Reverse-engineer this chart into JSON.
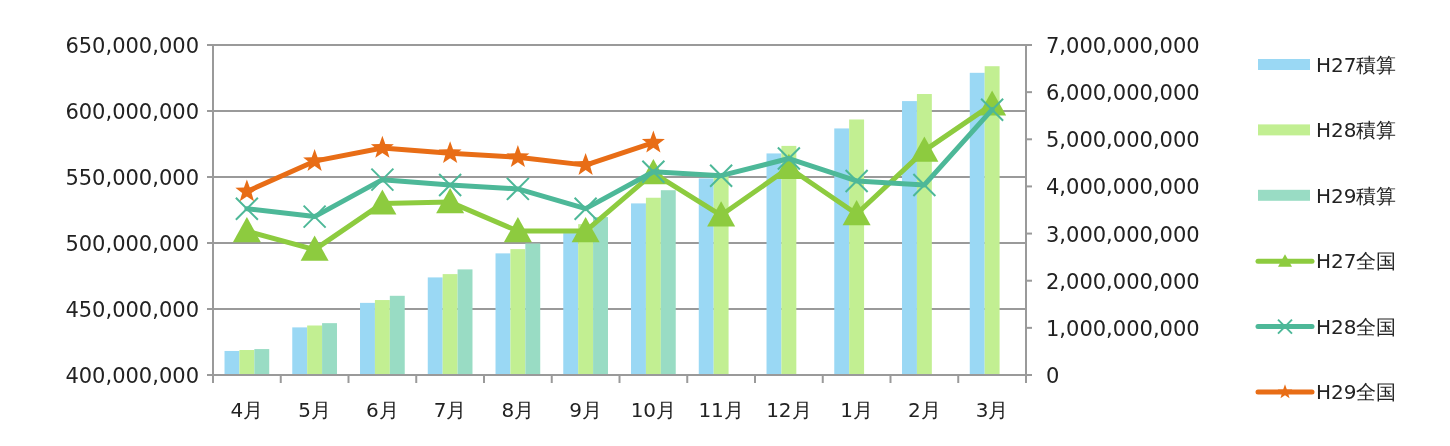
{
  "chart_data": {
    "type": "bar",
    "categories": [
      "4月",
      "5月",
      "6月",
      "7月",
      "8月",
      "9月",
      "10月",
      "11月",
      "12月",
      "1月",
      "2月",
      "3月"
    ],
    "series": [
      {
        "name": "H27積算",
        "axis": "y2",
        "color": "#9ad8f4",
        "values": [
          510000000,
          1010000000,
          1530000000,
          2070000000,
          2580000000,
          3010000000,
          3640000000,
          4170000000,
          4700000000,
          5230000000,
          5810000000,
          6410000000
        ]
      },
      {
        "name": "H28積算",
        "axis": "y2",
        "color": "#c2ef92",
        "values": [
          530000000,
          1050000000,
          1590000000,
          2140000000,
          2670000000,
          3200000000,
          3760000000,
          4240000000,
          4860000000,
          5420000000,
          5960000000,
          6550000000
        ]
      },
      {
        "name": "H29積算",
        "axis": "y2",
        "color": "#99dcc4",
        "values": [
          550000000,
          1100000000,
          1680000000,
          2240000000,
          2790000000,
          3350000000,
          3920000000,
          null,
          null,
          null,
          null,
          null
        ]
      },
      {
        "name": "H27全国",
        "type": "line",
        "axis": "y",
        "marker": "triangle",
        "color": "#8dcb3f",
        "values": [
          509000000,
          495000000,
          530000000,
          531000000,
          509000000,
          509000000,
          553000000,
          521000000,
          557000000,
          522000000,
          570000000,
          605000000
        ]
      },
      {
        "name": "H28全国",
        "type": "line",
        "axis": "y",
        "marker": "cross",
        "color": "#4db898",
        "values": [
          526000000,
          520000000,
          548000000,
          544000000,
          541000000,
          526000000,
          554000000,
          551000000,
          564000000,
          547000000,
          544000000,
          601000000
        ]
      },
      {
        "name": "H29全国",
        "type": "line",
        "axis": "y",
        "marker": "star",
        "color": "#e86d16",
        "values": [
          539000000,
          562000000,
          572000000,
          568000000,
          565000000,
          559000000,
          576000000,
          null,
          null,
          null,
          null,
          null
        ]
      }
    ],
    "ylim": [
      400000000,
      650000000
    ],
    "yticks": [
      {
        "value": 400000000,
        "label": "400,000,000"
      },
      {
        "value": 450000000,
        "label": "450,000,000"
      },
      {
        "value": 500000000,
        "label": "500,000,000"
      },
      {
        "value": 550000000,
        "label": "550,000,000"
      },
      {
        "value": 600000000,
        "label": "600,000,000"
      },
      {
        "value": 650000000,
        "label": "650,000,000"
      }
    ],
    "y2lim": [
      0,
      7000000000
    ],
    "y2ticks": [
      0,
      {
        "value": 1000000000,
        "label": "1,000,000,000"
      },
      {
        "value": 2000000000,
        "label": "2,000,000,000"
      },
      {
        "value": 3000000000,
        "label": "3,000,000,000"
      },
      {
        "value": 4000000000,
        "label": "4,000,000,000"
      },
      {
        "value": 5000000000,
        "label": "5,000,000,000"
      },
      {
        "value": 6000000000,
        "label": "6,000,000,000"
      },
      {
        "value": 7000000000,
        "label": "7,000,000,000"
      }
    ],
    "grid": "y",
    "legend": "right"
  }
}
